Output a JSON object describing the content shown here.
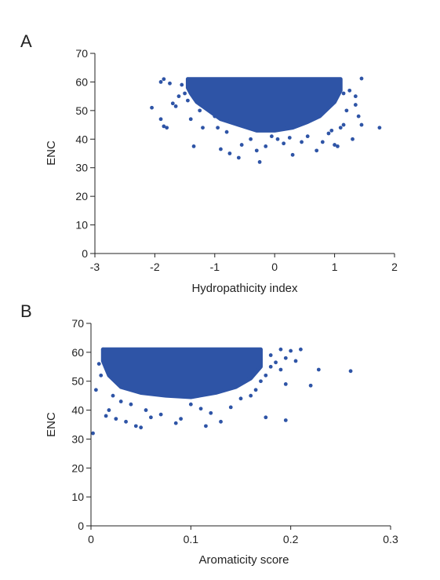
{
  "chart_data": [
    {
      "panel_label": "A",
      "type": "scatter",
      "xlabel": "Hydropathicity index",
      "ylabel": "ENC",
      "xlim": [
        -3,
        2
      ],
      "ylim": [
        0,
        70
      ],
      "xticks": [
        -3,
        -2,
        -1,
        0,
        1,
        2
      ],
      "xtick_labels": [
        "-3",
        "-2",
        "-1",
        "0",
        "1",
        "2"
      ],
      "yticks": [
        0,
        10,
        20,
        30,
        40,
        50,
        60,
        70
      ],
      "ytick_labels": [
        "0",
        "10",
        "20",
        "30",
        "40",
        "50",
        "60",
        "70"
      ],
      "grid": false,
      "color": "#2e54a6",
      "points": [
        [
          -1.85,
          61.0
        ],
        [
          -1.9,
          60.0
        ],
        [
          -1.75,
          59.5
        ],
        [
          -1.45,
          61.0
        ],
        [
          -1.35,
          60.8
        ],
        [
          -1.55,
          59.0
        ],
        [
          -2.05,
          51.0
        ],
        [
          -1.9,
          47.0
        ],
        [
          -1.85,
          44.5
        ],
        [
          -1.8,
          44.0
        ],
        [
          -1.7,
          52.5
        ],
        [
          -1.65,
          51.5
        ],
        [
          -1.6,
          55.0
        ],
        [
          -1.5,
          56.0
        ],
        [
          -1.45,
          53.5
        ],
        [
          -1.4,
          47.0
        ],
        [
          -1.35,
          37.5
        ],
        [
          -1.25,
          50.0
        ],
        [
          -1.2,
          44.0
        ],
        [
          -1.0,
          48.0
        ],
        [
          -0.95,
          44.0
        ],
        [
          -0.9,
          36.5
        ],
        [
          -0.8,
          42.5
        ],
        [
          -0.75,
          35.0
        ],
        [
          -0.6,
          33.5
        ],
        [
          -0.55,
          38.0
        ],
        [
          -0.4,
          40.0
        ],
        [
          -0.3,
          36.0
        ],
        [
          -0.25,
          32.0
        ],
        [
          -0.15,
          37.5
        ],
        [
          -0.05,
          41.0
        ],
        [
          0.05,
          40.0
        ],
        [
          0.15,
          38.5
        ],
        [
          0.25,
          40.5
        ],
        [
          0.3,
          34.5
        ],
        [
          0.45,
          39.0
        ],
        [
          0.55,
          41.0
        ],
        [
          0.7,
          36.0
        ],
        [
          0.8,
          39.0
        ],
        [
          0.9,
          42.0
        ],
        [
          0.95,
          43.0
        ],
        [
          1.0,
          38.0
        ],
        [
          1.05,
          37.5
        ],
        [
          1.1,
          44.0
        ],
        [
          1.15,
          45.0
        ],
        [
          1.2,
          50.0
        ],
        [
          1.3,
          40.0
        ],
        [
          1.35,
          52.0
        ],
        [
          1.4,
          48.0
        ],
        [
          1.45,
          45.0
        ],
        [
          1.45,
          61.2
        ],
        [
          1.35,
          55.0
        ],
        [
          1.25,
          57.0
        ],
        [
          1.15,
          56.0
        ],
        [
          1.05,
          58.0
        ],
        [
          1.75,
          44.0
        ]
      ],
      "dense_region": {
        "description_x_range": [
          -1.45,
          1.1
        ],
        "envelope": [
          [
            -1.45,
            61
          ],
          [
            1.1,
            61
          ],
          [
            1.1,
            57
          ],
          [
            1.0,
            53
          ],
          [
            0.9,
            51
          ],
          [
            0.75,
            48
          ],
          [
            0.55,
            46
          ],
          [
            0.3,
            44
          ],
          [
            0.0,
            43
          ],
          [
            -0.3,
            43
          ],
          [
            -0.6,
            45
          ],
          [
            -0.9,
            47
          ],
          [
            -1.1,
            50
          ],
          [
            -1.3,
            53
          ],
          [
            -1.4,
            56
          ],
          [
            -1.45,
            58
          ]
        ]
      }
    },
    {
      "panel_label": "B",
      "type": "scatter",
      "xlabel": "Aromaticity score",
      "ylabel": "ENC",
      "xlim": [
        0,
        0.3
      ],
      "ylim": [
        0,
        70
      ],
      "xticks": [
        0,
        0.1,
        0.2,
        0.3
      ],
      "xtick_labels": [
        "0",
        "0.1",
        "0.2",
        "0.3"
      ],
      "yticks": [
        0,
        10,
        20,
        30,
        40,
        50,
        60,
        70
      ],
      "ytick_labels": [
        "0",
        "10",
        "20",
        "30",
        "40",
        "50",
        "60",
        "70"
      ],
      "grid": false,
      "color": "#2e54a6",
      "points": [
        [
          0.002,
          32.0
        ],
        [
          0.005,
          47.0
        ],
        [
          0.008,
          56.0
        ],
        [
          0.01,
          52.0
        ],
        [
          0.012,
          61.0
        ],
        [
          0.015,
          38.0
        ],
        [
          0.018,
          40.0
        ],
        [
          0.022,
          45.0
        ],
        [
          0.025,
          37.0
        ],
        [
          0.03,
          43.0
        ],
        [
          0.035,
          36.0
        ],
        [
          0.04,
          42.0
        ],
        [
          0.045,
          34.5
        ],
        [
          0.05,
          34.0
        ],
        [
          0.055,
          40.0
        ],
        [
          0.06,
          37.5
        ],
        [
          0.07,
          38.5
        ],
        [
          0.085,
          35.5
        ],
        [
          0.09,
          37.0
        ],
        [
          0.1,
          42.0
        ],
        [
          0.11,
          40.5
        ],
        [
          0.115,
          34.5
        ],
        [
          0.12,
          39.0
        ],
        [
          0.13,
          36.0
        ],
        [
          0.14,
          41.0
        ],
        [
          0.15,
          44.0
        ],
        [
          0.16,
          45.0
        ],
        [
          0.165,
          47.0
        ],
        [
          0.17,
          50.0
        ],
        [
          0.175,
          52.0
        ],
        [
          0.18,
          55.0
        ],
        [
          0.185,
          56.5
        ],
        [
          0.19,
          54.0
        ],
        [
          0.195,
          58.0
        ],
        [
          0.2,
          60.5
        ],
        [
          0.205,
          57.0
        ],
        [
          0.21,
          61.0
        ],
        [
          0.175,
          37.5
        ],
        [
          0.195,
          36.5
        ],
        [
          0.195,
          49.0
        ],
        [
          0.22,
          48.5
        ],
        [
          0.228,
          54.0
        ],
        [
          0.26,
          53.5
        ],
        [
          0.19,
          61.0
        ],
        [
          0.18,
          59.0
        ],
        [
          0.17,
          57.5
        ]
      ],
      "dense_region": {
        "description_x_range": [
          0.01,
          0.17
        ],
        "envelope": [
          [
            0.012,
            61
          ],
          [
            0.17,
            61
          ],
          [
            0.17,
            55
          ],
          [
            0.16,
            51
          ],
          [
            0.145,
            48
          ],
          [
            0.125,
            46
          ],
          [
            0.1,
            44.5
          ],
          [
            0.075,
            45
          ],
          [
            0.05,
            46
          ],
          [
            0.03,
            48
          ],
          [
            0.018,
            52
          ],
          [
            0.012,
            57
          ]
        ]
      }
    }
  ]
}
